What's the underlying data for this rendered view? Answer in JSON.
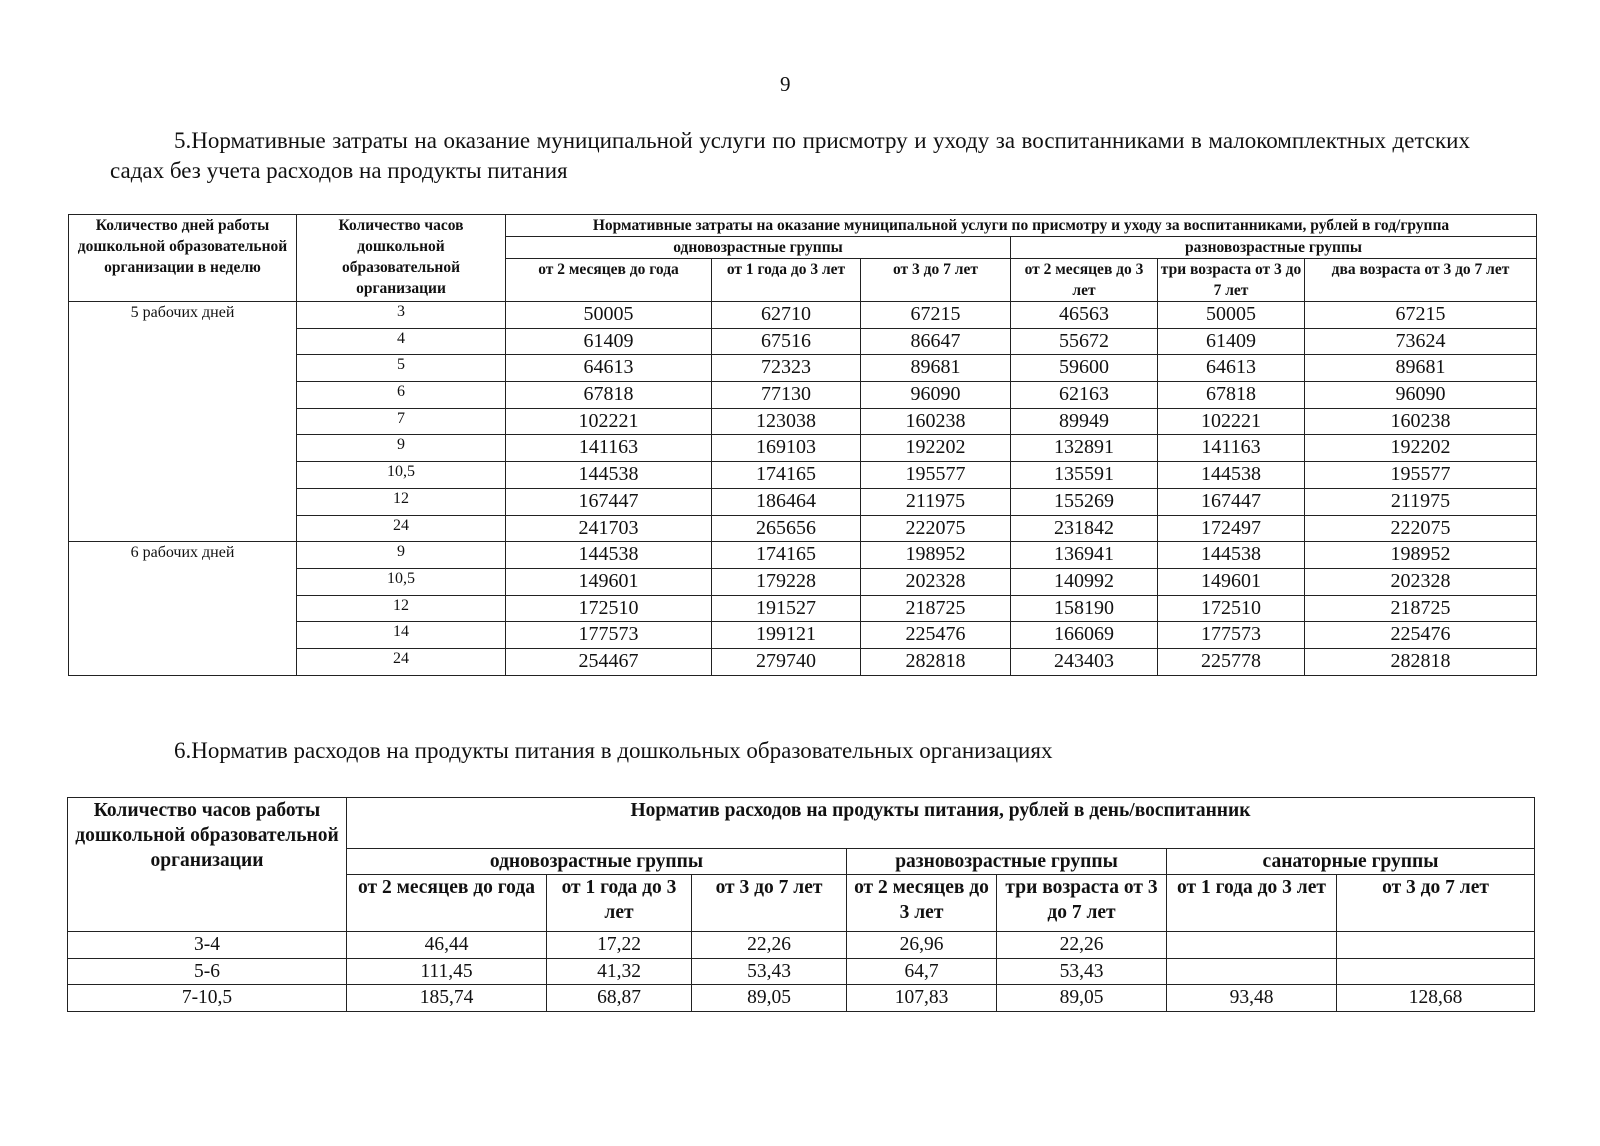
{
  "page_number": "9",
  "section5": {
    "heading": "5.Нормативные затраты на оказание муниципальной услуги по присмотру и уходу за воспитанниками в малокомплектных детских садах без учета расходов на продукты питания",
    "table": {
      "col_days": "Количество дней работы дошкольной образовательной организации в неделю",
      "col_hours": "Количество часов дошкольной образовательной организации",
      "col_costs": "Нормативные затраты на оказание муниципальной услуги по присмотру и уходу за воспитанниками, рублей в год/группа",
      "group_single": "одновозрастные группы",
      "group_mixed": "разновозрастные группы",
      "subcols": [
        "от 2 месяцев до года",
        "от 1 года до 3 лет",
        "от 3 до 7 лет",
        "от 2 месяцев до 3 лет",
        "три возраста от 3 до 7 лет",
        "два возраста от 3 до 7 лет"
      ],
      "blocks": [
        {
          "days": "5 рабочих дней",
          "rows": [
            {
              "hours": "3",
              "values": [
                "50005",
                "62710",
                "67215",
                "46563",
                "50005",
                "67215"
              ]
            },
            {
              "hours": "4",
              "values": [
                "61409",
                "67516",
                "86647",
                "55672",
                "61409",
                "73624"
              ]
            },
            {
              "hours": "5",
              "values": [
                "64613",
                "72323",
                "89681",
                "59600",
                "64613",
                "89681"
              ]
            },
            {
              "hours": "6",
              "values": [
                "67818",
                "77130",
                "96090",
                "62163",
                "67818",
                "96090"
              ]
            },
            {
              "hours": "7",
              "values": [
                "102221",
                "123038",
                "160238",
                "89949",
                "102221",
                "160238"
              ]
            },
            {
              "hours": "9",
              "values": [
                "141163",
                "169103",
                "192202",
                "132891",
                "141163",
                "192202"
              ]
            },
            {
              "hours": "10,5",
              "values": [
                "144538",
                "174165",
                "195577",
                "135591",
                "144538",
                "195577"
              ]
            },
            {
              "hours": "12",
              "values": [
                "167447",
                "186464",
                "211975",
                "155269",
                "167447",
                "211975"
              ]
            },
            {
              "hours": "24",
              "values": [
                "241703",
                "265656",
                "222075",
                "231842",
                "172497",
                "222075"
              ]
            }
          ]
        },
        {
          "days": "6 рабочих дней",
          "rows": [
            {
              "hours": "9",
              "values": [
                "144538",
                "174165",
                "198952",
                "136941",
                "144538",
                "198952"
              ]
            },
            {
              "hours": "10,5",
              "values": [
                "149601",
                "179228",
                "202328",
                "140992",
                "149601",
                "202328"
              ]
            },
            {
              "hours": "12",
              "values": [
                "172510",
                "191527",
                "218725",
                "158190",
                "172510",
                "218725"
              ]
            },
            {
              "hours": "14",
              "values": [
                "177573",
                "199121",
                "225476",
                "166069",
                "177573",
                "225476"
              ]
            },
            {
              "hours": "24",
              "values": [
                "254467",
                "279740",
                "282818",
                "243403",
                "225778",
                "282818"
              ]
            }
          ]
        }
      ]
    }
  },
  "section6": {
    "heading": "6.Норматив расходов на продукты питания в дошкольных образовательных организациях",
    "table": {
      "col_hours": "Количество часов работы дошкольной образовательной организации",
      "col_norm": "Норматив расходов на продукты питания, рублей в день/воспитанник",
      "group_single": "одновозрастные группы",
      "group_mixed": "разновозрастные группы",
      "group_sanatorium": "санаторные группы",
      "subcols": [
        "от 2 месяцев до года",
        "от 1 года до 3 лет",
        "от 3 до 7 лет",
        "от 2 месяцев до 3 лет",
        "три возраста от 3 до 7 лет",
        "от 1 года до 3 лет",
        "от 3 до 7 лет"
      ],
      "rows": [
        {
          "hours": "3-4",
          "values": [
            "46,44",
            "17,22",
            "22,26",
            "26,96",
            "22,26",
            "",
            ""
          ]
        },
        {
          "hours": "5-6",
          "values": [
            "111,45",
            "41,32",
            "53,43",
            "64,7",
            "53,43",
            "",
            ""
          ]
        },
        {
          "hours": "7-10,5",
          "values": [
            "185,74",
            "68,87",
            "89,05",
            "107,83",
            "89,05",
            "93,48",
            "128,68"
          ]
        }
      ]
    }
  }
}
